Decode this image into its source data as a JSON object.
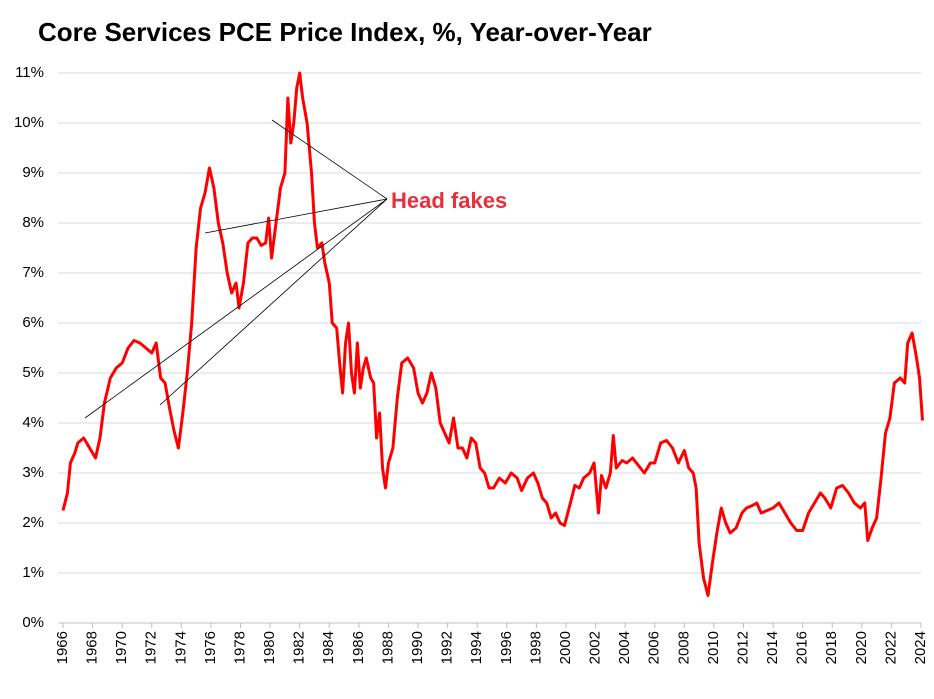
{
  "chart_data": {
    "type": "line",
    "title": "Core Services PCE Price Index, %, Year-over-Year",
    "annotation": "Head fakes",
    "color": "#ff0000",
    "grid": true,
    "xlim": [
      1966,
      2024
    ],
    "xticks": [
      1966,
      1968,
      1970,
      1972,
      1974,
      1976,
      1978,
      1980,
      1982,
      1984,
      1986,
      1988,
      1990,
      1992,
      1994,
      1996,
      1998,
      2000,
      2002,
      2004,
      2006,
      2008,
      2010,
      2012,
      2014,
      2016,
      2018,
      2020,
      2022,
      2024
    ],
    "ylim": [
      0,
      11
    ],
    "yticks": [
      {
        "value": 0,
        "label": "0%"
      },
      {
        "value": 1,
        "label": "1%"
      },
      {
        "value": 2,
        "label": "2%"
      },
      {
        "value": 3,
        "label": "3%"
      },
      {
        "value": 4,
        "label": "4%"
      },
      {
        "value": 5,
        "label": "5%"
      },
      {
        "value": 6,
        "label": "6%"
      },
      {
        "value": 7,
        "label": "7%"
      },
      {
        "value": 8,
        "label": "8%"
      },
      {
        "value": 9,
        "label": "9%"
      },
      {
        "value": 10,
        "label": "10%"
      },
      {
        "value": 11,
        "label": "11%"
      }
    ],
    "x": [
      1966.0,
      1966.3,
      1966.5,
      1966.8,
      1967.0,
      1967.4,
      1967.8,
      1968.2,
      1968.5,
      1968.8,
      1969.2,
      1969.6,
      1970.0,
      1970.4,
      1970.8,
      1971.2,
      1971.6,
      1972.0,
      1972.3,
      1972.6,
      1972.9,
      1973.2,
      1973.5,
      1973.8,
      1974.1,
      1974.4,
      1974.7,
      1975.0,
      1975.3,
      1975.6,
      1975.9,
      1976.2,
      1976.5,
      1976.8,
      1977.1,
      1977.4,
      1977.7,
      1977.9,
      1978.2,
      1978.5,
      1978.8,
      1979.1,
      1979.4,
      1979.7,
      1979.9,
      1980.1,
      1980.4,
      1980.7,
      1981.0,
      1981.2,
      1981.4,
      1981.6,
      1981.8,
      1982.0,
      1982.2,
      1982.5,
      1982.8,
      1983.0,
      1983.2,
      1983.5,
      1983.7,
      1984.0,
      1984.2,
      1984.5,
      1984.7,
      1984.9,
      1985.1,
      1985.3,
      1985.5,
      1985.7,
      1985.9,
      1986.1,
      1986.3,
      1986.5,
      1986.8,
      1987.0,
      1987.2,
      1987.4,
      1987.6,
      1987.8,
      1988.0,
      1988.3,
      1988.6,
      1988.9,
      1989.3,
      1989.7,
      1990.0,
      1990.3,
      1990.6,
      1990.9,
      1991.2,
      1991.5,
      1991.8,
      1992.1,
      1992.4,
      1992.7,
      1993.0,
      1993.3,
      1993.6,
      1993.9,
      1994.2,
      1994.5,
      1994.8,
      1995.1,
      1995.5,
      1995.9,
      1996.3,
      1996.7,
      1997.0,
      1997.4,
      1997.8,
      1998.1,
      1998.4,
      1998.7,
      1999.0,
      1999.3,
      1999.6,
      1999.9,
      2000.3,
      2000.6,
      2000.9,
      2001.2,
      2001.6,
      2001.9,
      2002.2,
      2002.4,
      2002.7,
      2003.0,
      2003.2,
      2003.4,
      2003.8,
      2004.1,
      2004.5,
      2004.9,
      2005.3,
      2005.7,
      2006.0,
      2006.4,
      2006.8,
      2007.2,
      2007.6,
      2008.0,
      2008.3,
      2008.6,
      2008.8,
      2009.0,
      2009.3,
      2009.6,
      2009.9,
      2010.2,
      2010.5,
      2010.8,
      2011.1,
      2011.5,
      2011.9,
      2012.2,
      2012.6,
      2012.9,
      2013.2,
      2013.6,
      2014.0,
      2014.4,
      2014.8,
      2015.2,
      2015.6,
      2016.0,
      2016.4,
      2016.8,
      2017.2,
      2017.5,
      2017.9,
      2018.3,
      2018.7,
      2019.1,
      2019.5,
      2019.9,
      2020.2,
      2020.4,
      2020.7,
      2021.0,
      2021.3,
      2021.6,
      2021.9,
      2022.2,
      2022.6,
      2022.9,
      2023.1,
      2023.4,
      2023.7,
      2023.9,
      2024.1
    ],
    "values": [
      2.25,
      2.6,
      3.2,
      3.4,
      3.6,
      3.7,
      3.5,
      3.3,
      3.7,
      4.4,
      4.9,
      5.1,
      5.2,
      5.5,
      5.65,
      5.6,
      5.5,
      5.4,
      5.6,
      4.9,
      4.8,
      4.3,
      3.85,
      3.5,
      4.2,
      5.0,
      6.0,
      7.5,
      8.3,
      8.6,
      9.1,
      8.7,
      8.0,
      7.6,
      7.0,
      6.6,
      6.8,
      6.3,
      6.8,
      7.6,
      7.7,
      7.7,
      7.55,
      7.6,
      8.1,
      7.3,
      8.0,
      8.7,
      9.0,
      10.5,
      9.6,
      10.0,
      10.7,
      11.0,
      10.5,
      10.0,
      9.0,
      8.0,
      7.5,
      7.6,
      7.2,
      6.8,
      6.0,
      5.9,
      5.2,
      4.6,
      5.6,
      6.0,
      5.0,
      4.6,
      5.6,
      4.7,
      5.1,
      5.3,
      4.9,
      4.8,
      3.7,
      4.2,
      3.1,
      2.7,
      3.2,
      3.5,
      4.5,
      5.2,
      5.3,
      5.1,
      4.6,
      4.4,
      4.6,
      5.0,
      4.7,
      4.0,
      3.8,
      3.6,
      4.1,
      3.5,
      3.5,
      3.3,
      3.7,
      3.6,
      3.1,
      3.0,
      2.7,
      2.7,
      2.9,
      2.8,
      3.0,
      2.9,
      2.65,
      2.9,
      3.0,
      2.8,
      2.5,
      2.4,
      2.1,
      2.2,
      2.0,
      1.95,
      2.4,
      2.75,
      2.7,
      2.9,
      3.0,
      3.2,
      2.2,
      2.95,
      2.7,
      3.0,
      3.75,
      3.1,
      3.25,
      3.2,
      3.3,
      3.15,
      3.0,
      3.2,
      3.2,
      3.6,
      3.65,
      3.5,
      3.2,
      3.45,
      3.1,
      3.0,
      2.7,
      1.6,
      0.9,
      0.55,
      1.2,
      1.8,
      2.3,
      2.0,
      1.8,
      1.9,
      2.2,
      2.3,
      2.35,
      2.4,
      2.2,
      2.25,
      2.3,
      2.4,
      2.2,
      2.0,
      1.85,
      1.85,
      2.2,
      2.4,
      2.6,
      2.5,
      2.3,
      2.7,
      2.75,
      2.6,
      2.4,
      2.3,
      2.4,
      1.65,
      1.9,
      2.1,
      2.9,
      3.8,
      4.1,
      4.8,
      4.9,
      4.8,
      5.6,
      5.8,
      5.3,
      4.9,
      4.05
    ]
  }
}
